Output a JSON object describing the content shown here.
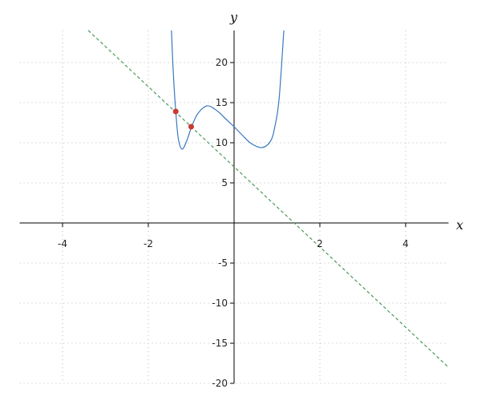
{
  "chart_data": {
    "type": "line",
    "xlabel": "x",
    "ylabel": "y",
    "xlim": [
      -5,
      5
    ],
    "ylim": [
      -20,
      24
    ],
    "grid": true,
    "xticks": [
      -4,
      -2,
      2,
      4
    ],
    "yticks": [
      -20,
      -15,
      -10,
      -5,
      5,
      10,
      15,
      20
    ],
    "series": [
      {
        "style": "solid",
        "color": "#3a78c0",
        "x": [
          -1.46,
          -1.42,
          -1.36,
          -1.3,
          -1.21,
          -1.1,
          -0.99,
          -0.85,
          -0.63,
          -0.4,
          -0.2,
          0,
          0.2,
          0.4,
          0.65,
          0.85,
          0.95,
          1.05,
          1.16
        ],
        "y": [
          24,
          19,
          13.9,
          10.5,
          9.2,
          10.3,
          12,
          13.6,
          14.6,
          14.0,
          13.0,
          12,
          10.9,
          9.9,
          9.4,
          10.2,
          12,
          15.5,
          24
        ]
      },
      {
        "style": "dashed",
        "color": "#4a9a5a",
        "x": [
          -3.4,
          5
        ],
        "y": [
          24,
          -18
        ]
      }
    ],
    "points": [
      {
        "x": -1.36,
        "y": 13.9,
        "color": "#c83a30"
      },
      {
        "x": -1.0,
        "y": 12,
        "color": "#c83a30"
      }
    ]
  }
}
